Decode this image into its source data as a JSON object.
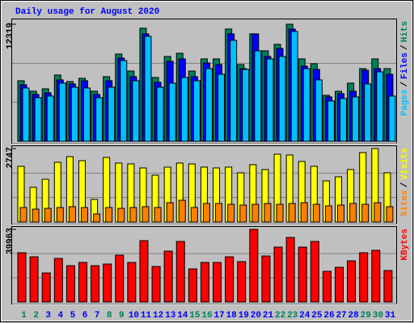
{
  "chart_data": [
    {
      "type": "bar",
      "title": "Daily usage for August 2020",
      "legend_separator": "/",
      "ylim": [
        0,
        12319
      ],
      "yticks": [
        12319
      ],
      "series": [
        {
          "name": "Hits",
          "color": "#00805c",
          "values": [
            6375,
            5270,
            5525,
            6970,
            6290,
            6630,
            5270,
            6800,
            9180,
            7395,
            11900,
            6715,
            8925,
            9265,
            7395,
            8670,
            8670,
            11815,
            8075,
            11305,
            9520,
            10200,
            12319,
            8670,
            8160,
            4845,
            5270,
            6120,
            7650,
            8670,
            7650
          ]
        },
        {
          "name": "Files",
          "color": "#0000ff",
          "values": [
            5950,
            4930,
            5100,
            6460,
            6035,
            6375,
            4930,
            6375,
            8755,
            6800,
            11305,
            6205,
            8415,
            8670,
            6800,
            8245,
            8075,
            11305,
            7650,
            11305,
            8925,
            9775,
            11815,
            7905,
            7565,
            4675,
            5015,
            5270,
            7480,
            7650,
            7055
          ]
        },
        {
          "name": "Pages",
          "color": "#00c0ff",
          "values": [
            5610,
            4590,
            4760,
            6120,
            5695,
            5610,
            4590,
            5695,
            8500,
            6375,
            11050,
            5695,
            6120,
            6715,
            6375,
            7650,
            7055,
            10625,
            7565,
            9520,
            8670,
            8925,
            11560,
            7650,
            6460,
            4250,
            4505,
            4675,
            6035,
            7310,
            4760
          ]
        }
      ]
    },
    {
      "type": "bar",
      "legend_separator": "/",
      "ylim": [
        0,
        2747
      ],
      "yticks": [
        2747
      ],
      "series": [
        {
          "name": "Visits",
          "color": "#ffff00",
          "values": [
            2084,
            1299,
            1601,
            2235,
            2446,
            2295,
            846,
            2416,
            2205,
            2174,
            2023,
            1752,
            2054,
            2205,
            2174,
            2054,
            2023,
            2054,
            1842,
            2144,
            1963,
            2537,
            2507,
            2265,
            2084,
            1540,
            1691,
            1963,
            2597,
            2747,
            1842
          ]
        },
        {
          "name": "Sites",
          "color": "#ff8000",
          "values": [
            544,
            483,
            513,
            544,
            574,
            544,
            302,
            544,
            513,
            544,
            574,
            544,
            725,
            815,
            544,
            695,
            695,
            664,
            634,
            664,
            695,
            664,
            695,
            725,
            664,
            604,
            634,
            695,
            664,
            725,
            574
          ]
        }
      ]
    },
    {
      "type": "bar",
      "ylim": [
        0,
        39963
      ],
      "yticks": [
        39963
      ],
      "categories": [
        "1",
        "2",
        "3",
        "4",
        "5",
        "6",
        "7",
        "8",
        "9",
        "10",
        "11",
        "12",
        "13",
        "14",
        "15",
        "16",
        "17",
        "18",
        "19",
        "20",
        "21",
        "22",
        "23",
        "24",
        "25",
        "26",
        "27",
        "28",
        "29",
        "30",
        "31"
      ],
      "category_colors": [
        "#00805c",
        "#00805c",
        "#0000ff",
        "#0000ff",
        "#0000ff",
        "#0000ff",
        "#0000ff",
        "#00805c",
        "#00805c",
        "#0000ff",
        "#0000ff",
        "#0000ff",
        "#0000ff",
        "#0000ff",
        "#00805c",
        "#00805c",
        "#0000ff",
        "#0000ff",
        "#0000ff",
        "#0000ff",
        "#0000ff",
        "#00805c",
        "#00805c",
        "#0000ff",
        "#0000ff",
        "#0000ff",
        "#0000ff",
        "#0000ff",
        "#00805c",
        "#00805c",
        "#0000ff"
      ],
      "series": [
        {
          "name": "KBytes",
          "color": "#ff0000",
          "values": [
            27084,
            24864,
            15984,
            23976,
            19980,
            21756,
            19980,
            20868,
            25752,
            21756,
            33744,
            19536,
            27972,
            33300,
            18204,
            21756,
            21756,
            24864,
            22200,
            39963,
            25308,
            30192,
            35520,
            30192,
            33300,
            16872,
            19092,
            22644,
            27084,
            28416,
            17316
          ]
        }
      ]
    }
  ]
}
